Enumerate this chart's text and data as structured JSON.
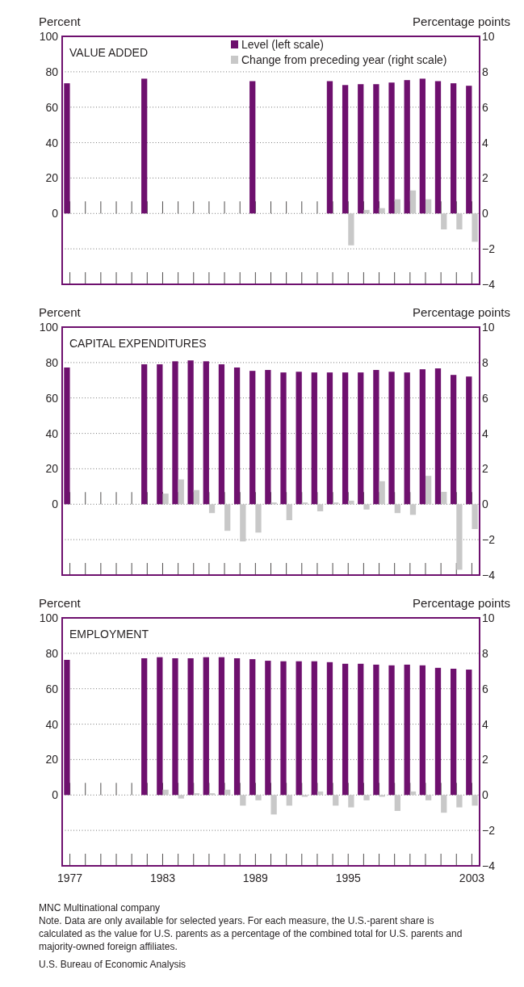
{
  "chart_data": [
    {
      "type": "bar",
      "title": "VALUE ADDED",
      "ylabel": "Percent",
      "y2label": "Percentage points",
      "x": [
        1977,
        1982,
        1989,
        1994,
        1995,
        1996,
        1997,
        1998,
        1999,
        2000,
        2001,
        2002,
        2003
      ],
      "series": [
        {
          "name": "Level (left scale)",
          "color": "#6e106e",
          "values": [
            73.5,
            76.1,
            74.7,
            74.7,
            72.5,
            73,
            73,
            73.9,
            75.3,
            76.1,
            74.7,
            73.5,
            72.1
          ]
        },
        {
          "name": "Change from preceding year (right scale)",
          "color": "#c8c8c8",
          "axis": "y2",
          "values": [
            null,
            null,
            null,
            null,
            -1.8,
            0.2,
            0.3,
            0.8,
            1.3,
            0.8,
            -0.9,
            -0.9,
            -1.6
          ]
        }
      ],
      "xlim": [
        1976.5,
        2003.5
      ],
      "xticks": [
        {
          "value": 1977,
          "label": null
        },
        {
          "value": 1978,
          "label": null
        },
        {
          "value": 1979,
          "label": null
        },
        {
          "value": 1980,
          "label": null
        },
        {
          "value": 1981,
          "label": null
        },
        {
          "value": 1982,
          "label": null
        },
        {
          "value": 1983,
          "label": null
        },
        {
          "value": 1984,
          "label": null
        },
        {
          "value": 1985,
          "label": null
        },
        {
          "value": 1986,
          "label": null
        },
        {
          "value": 1987,
          "label": null
        },
        {
          "value": 1988,
          "label": null
        },
        {
          "value": 1989,
          "label": null
        },
        {
          "value": 1990,
          "label": null
        },
        {
          "value": 1991,
          "label": null
        },
        {
          "value": 1992,
          "label": null
        },
        {
          "value": 1993,
          "label": null
        },
        {
          "value": 1994,
          "label": null
        },
        {
          "value": 1995,
          "label": null
        },
        {
          "value": 1996,
          "label": null
        },
        {
          "value": 1997,
          "label": null
        },
        {
          "value": 1998,
          "label": null
        },
        {
          "value": 1999,
          "label": null
        },
        {
          "value": 2000,
          "label": null
        },
        {
          "value": 2001,
          "label": null
        },
        {
          "value": 2002,
          "label": null
        },
        {
          "value": 2003,
          "label": null
        }
      ],
      "ylim": [
        -40,
        100
      ],
      "yticks": [
        0,
        20,
        40,
        60,
        80,
        100
      ],
      "y2lim": [
        -4,
        10
      ],
      "y2ticks": [
        -4,
        -2,
        0,
        2,
        4,
        6,
        8,
        10
      ],
      "grid": "y",
      "legend": "top right",
      "tick_labels": "y"
    },
    {
      "type": "bar",
      "title": "CAPITAL EXPENDITURES",
      "ylabel": "Percent",
      "y2label": "Percentage points",
      "x": [
        1977,
        1982,
        1983,
        1984,
        1985,
        1986,
        1987,
        1988,
        1989,
        1990,
        1991,
        1992,
        1993,
        1994,
        1995,
        1996,
        1997,
        1998,
        1999,
        2000,
        2001,
        2002,
        2003
      ],
      "series": [
        {
          "color": "#6e106e",
          "values": [
            77.2,
            79,
            79,
            80.7,
            81.2,
            80.7,
            79,
            77.2,
            75.3,
            75.8,
            74.4,
            74.8,
            74.4,
            74.4,
            74.4,
            74.4,
            75.8,
            74.8,
            74.4,
            76.2,
            76.7,
            73,
            72.1
          ]
        },
        {
          "color": "#c8c8c8",
          "axis": "y2",
          "values": [
            null,
            null,
            0.6,
            1.4,
            0.8,
            -0.5,
            -1.5,
            -2.1,
            -1.6,
            0.1,
            -0.9,
            0.1,
            -0.4,
            0.1,
            0.2,
            -0.3,
            1.3,
            -0.5,
            -0.6,
            1.6,
            0.7,
            -3.7,
            -1.4
          ]
        }
      ],
      "xlim": [
        1976.5,
        2003.5
      ],
      "xticks": [
        {
          "value": 1977,
          "label": null
        },
        {
          "value": 1978,
          "label": null
        },
        {
          "value": 1979,
          "label": null
        },
        {
          "value": 1980,
          "label": null
        },
        {
          "value": 1981,
          "label": null
        },
        {
          "value": 1982,
          "label": null
        },
        {
          "value": 1983,
          "label": null
        },
        {
          "value": 1984,
          "label": null
        },
        {
          "value": 1985,
          "label": null
        },
        {
          "value": 1986,
          "label": null
        },
        {
          "value": 1987,
          "label": null
        },
        {
          "value": 1988,
          "label": null
        },
        {
          "value": 1989,
          "label": null
        },
        {
          "value": 1990,
          "label": null
        },
        {
          "value": 1991,
          "label": null
        },
        {
          "value": 1992,
          "label": null
        },
        {
          "value": 1993,
          "label": null
        },
        {
          "value": 1994,
          "label": null
        },
        {
          "value": 1995,
          "label": null
        },
        {
          "value": 1996,
          "label": null
        },
        {
          "value": 1997,
          "label": null
        },
        {
          "value": 1998,
          "label": null
        },
        {
          "value": 1999,
          "label": null
        },
        {
          "value": 2000,
          "label": null
        },
        {
          "value": 2001,
          "label": null
        },
        {
          "value": 2002,
          "label": null
        },
        {
          "value": 2003,
          "label": null
        }
      ],
      "ylim": [
        -40,
        100
      ],
      "yticks": [
        0,
        20,
        40,
        60,
        80,
        100
      ],
      "y2lim": [
        -4,
        10
      ],
      "y2ticks": [
        -4,
        -2,
        0,
        2,
        4,
        6,
        8,
        10
      ],
      "grid": "y",
      "tick_labels": "y"
    },
    {
      "type": "bar",
      "title": "EMPLOYMENT",
      "ylabel": "Percent",
      "y2label": "Percentage points",
      "x": [
        1977,
        1982,
        1983,
        1984,
        1985,
        1986,
        1987,
        1988,
        1989,
        1990,
        1991,
        1992,
        1993,
        1994,
        1995,
        1996,
        1997,
        1998,
        1999,
        2000,
        2001,
        2002,
        2003
      ],
      "series": [
        {
          "color": "#6e106e",
          "values": [
            76.3,
            77.2,
            77.8,
            77.2,
            77.2,
            77.8,
            77.8,
            77.2,
            76.7,
            75.8,
            75.5,
            75.5,
            75.5,
            75,
            74.1,
            74.1,
            73.6,
            73.2,
            73.6,
            73.2,
            71.8,
            71.3,
            70.8
          ]
        },
        {
          "color": "#c8c8c8",
          "axis": "y2",
          "values": [
            null,
            null,
            0.3,
            -0.2,
            0.1,
            0.1,
            0.3,
            -0.6,
            -0.3,
            -1.1,
            -0.6,
            -0.1,
            0.2,
            -0.6,
            -0.7,
            -0.3,
            -0.1,
            -0.9,
            0.2,
            -0.3,
            -1,
            -0.7,
            -0.6
          ]
        }
      ],
      "xlim": [
        1976.5,
        2003.5
      ],
      "xticks": [
        1977,
        {
          "value": 1978,
          "label": null
        },
        {
          "value": 1979,
          "label": null
        },
        {
          "value": 1980,
          "label": null
        },
        {
          "value": 1981,
          "label": null
        },
        {
          "value": 1982,
          "label": null
        },
        1983,
        {
          "value": 1984,
          "label": null
        },
        {
          "value": 1985,
          "label": null
        },
        {
          "value": 1986,
          "label": null
        },
        {
          "value": 1987,
          "label": null
        },
        {
          "value": 1988,
          "label": null
        },
        1989,
        {
          "value": 1990,
          "label": null
        },
        {
          "value": 1991,
          "label": null
        },
        {
          "value": 1992,
          "label": null
        },
        {
          "value": 1993,
          "label": null
        },
        {
          "value": 1994,
          "label": null
        },
        1995,
        {
          "value": 1996,
          "label": null
        },
        {
          "value": 1997,
          "label": null
        },
        {
          "value": 1998,
          "label": null
        },
        {
          "value": 1999,
          "label": null
        },
        {
          "value": 2000,
          "label": null
        },
        {
          "value": 2001,
          "label": null
        },
        {
          "value": 2002,
          "label": null
        },
        2003
      ],
      "ylim": [
        -40,
        100
      ],
      "yticks": [
        0,
        20,
        40,
        60,
        80,
        100
      ],
      "y2lim": [
        -4,
        10
      ],
      "y2ticks": [
        -4,
        -2,
        0,
        2,
        4,
        6,
        8,
        10
      ],
      "grid": "y",
      "annotations": [
        "MNC Multinational company",
        "Note. Data are only available for selected years. For each measure, the U.S.-parent share is calculated as the value for U.S. parents as a percentage of the combined total for U.S. parents and majority-owned foreign affiliates.",
        "U.S. Bureau of Economic Analysis"
      ]
    }
  ]
}
